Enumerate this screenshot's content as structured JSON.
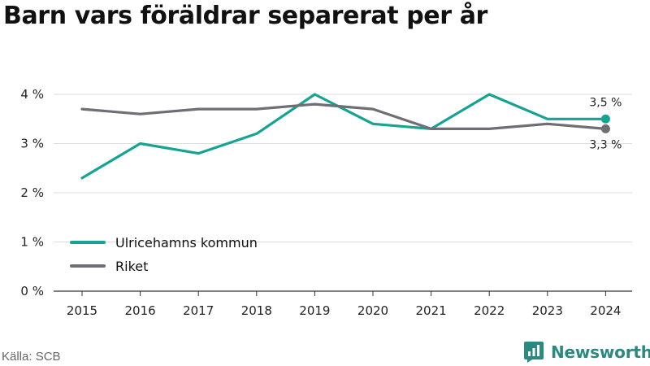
{
  "title": "Barn vars föräldrar separerat per år",
  "source": "Källa: SCB",
  "brand": {
    "name": "Newsworthy",
    "icon": "newsworthy-logo-icon",
    "color": "#2b8a80"
  },
  "chart_data": {
    "type": "line",
    "x": [
      "2015",
      "2016",
      "2017",
      "2018",
      "2019",
      "2020",
      "2021",
      "2022",
      "2023",
      "2024"
    ],
    "ylim": [
      0,
      4
    ],
    "yticks": [
      0,
      1,
      2,
      3,
      4
    ],
    "ytick_labels": [
      "0 %",
      "1 %",
      "2 %",
      "3 %",
      "4 %"
    ],
    "grid": true,
    "legend_position": "bottom-left",
    "series": [
      {
        "name": "Ulricehamns kommun",
        "color": "#16a394",
        "values": [
          2.3,
          3.0,
          2.8,
          3.2,
          4.0,
          3.4,
          3.3,
          4.0,
          3.5,
          3.5
        ],
        "end_label": "3,5 %"
      },
      {
        "name": "Riket",
        "color": "#6e6e74",
        "values": [
          3.7,
          3.6,
          3.7,
          3.7,
          3.8,
          3.7,
          3.3,
          3.3,
          3.4,
          3.3
        ],
        "end_label": "3,3 %"
      }
    ]
  }
}
